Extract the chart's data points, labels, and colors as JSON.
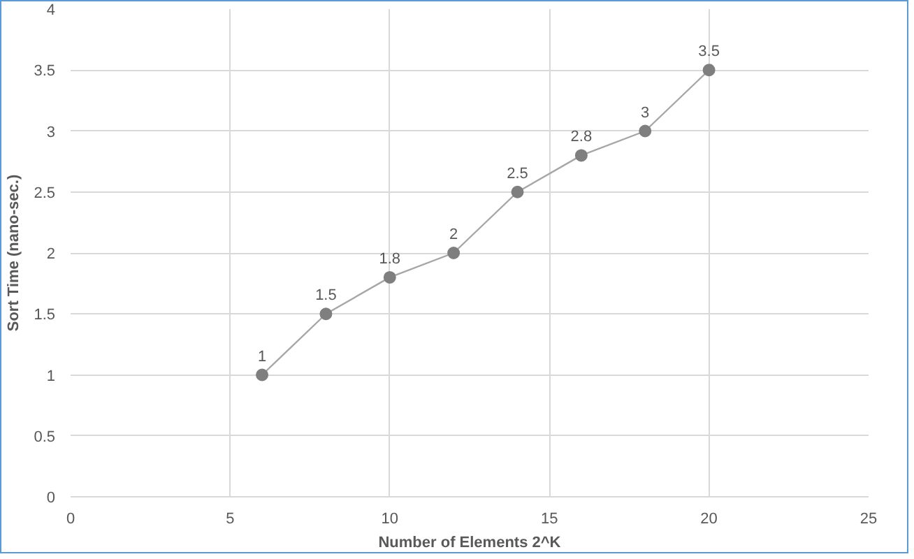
{
  "chart_data": {
    "type": "scatter",
    "xlabel": "Number of Elements 2^K",
    "ylabel": "Sort Time (nano-sec.)",
    "x": [
      6,
      8,
      10,
      12,
      14,
      16,
      18,
      20
    ],
    "series": [
      {
        "color": "#7f7f7f",
        "values": [
          1,
          1.5,
          1.8,
          2,
          2.5,
          2.8,
          3,
          3.5
        ]
      }
    ],
    "xlim": [
      0,
      25
    ],
    "xticks": [
      0,
      5,
      10,
      15,
      20,
      25
    ],
    "ylim": [
      0,
      4
    ],
    "yticks": [
      0,
      0.5,
      1,
      1.5,
      2,
      2.5,
      3,
      3.5,
      4
    ],
    "grid": true,
    "marker": "circle",
    "line_style": "solid",
    "data_labels": true
  }
}
